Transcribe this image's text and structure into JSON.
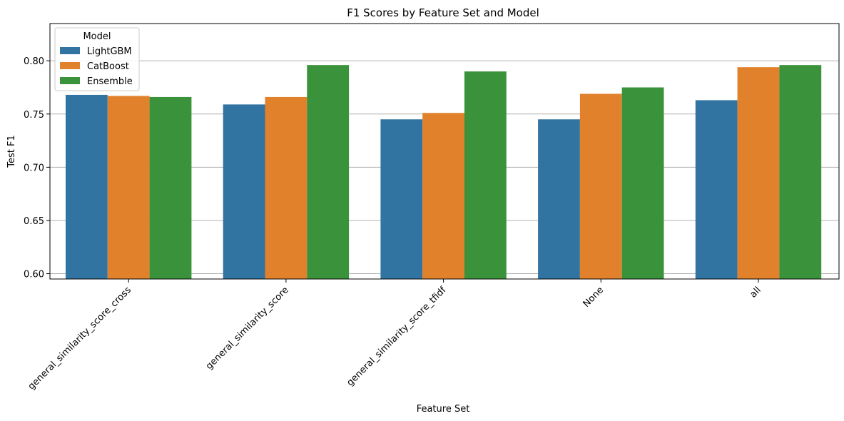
{
  "chart_data": {
    "type": "bar",
    "title": "F1 Scores by Feature Set and Model",
    "xlabel": "Feature Set",
    "ylabel": "Test F1",
    "categories": [
      "general_similarity_score_cross",
      "general_similarity_score",
      "general_similarity_score_tfidf",
      "None",
      "all"
    ],
    "series": [
      {
        "name": "LightGBM",
        "color": "#3274a1",
        "values": [
          0.768,
          0.759,
          0.745,
          0.745,
          0.763
        ]
      },
      {
        "name": "CatBoost",
        "color": "#e1812c",
        "values": [
          0.767,
          0.766,
          0.751,
          0.769,
          0.794
        ]
      },
      {
        "name": "Ensemble",
        "color": "#3a923a",
        "values": [
          0.766,
          0.796,
          0.79,
          0.775,
          0.796
        ]
      }
    ],
    "ylim": [
      0.595,
      0.835
    ],
    "yticks": [
      0.6,
      0.65,
      0.7,
      0.75,
      0.8
    ],
    "ytick_labels": [
      "0.60",
      "0.65",
      "0.70",
      "0.75",
      "0.80"
    ],
    "grid": "y",
    "legend": {
      "title": "Model",
      "placement": "top-left"
    }
  }
}
